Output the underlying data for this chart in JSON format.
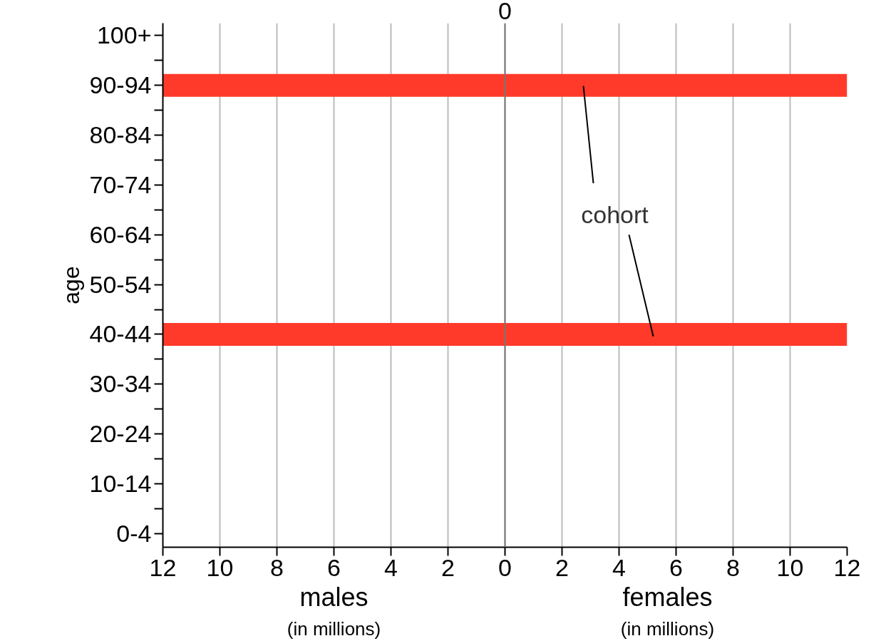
{
  "chart_data": {
    "type": "bar",
    "orientation": "horizontal",
    "ylabel": "age",
    "categories": [
      "100+",
      null,
      "90-94",
      null,
      "80-84",
      null,
      "70-74",
      null,
      "60-64",
      null,
      "50-54",
      null,
      "40-44",
      null,
      "30-34",
      null,
      "20-24",
      null,
      "10-14",
      null,
      "0-4"
    ],
    "series": [
      {
        "color": "#ff3a2a",
        "values": [
          null,
          null,
          -12,
          null,
          null,
          null,
          null,
          null,
          null,
          null,
          null,
          null,
          -12,
          null,
          null,
          null,
          null,
          null,
          null,
          null,
          null
        ]
      },
      {
        "color": "#ff3a2a",
        "values": [
          null,
          null,
          12,
          null,
          null,
          null,
          null,
          null,
          null,
          null,
          null,
          null,
          12,
          null,
          null,
          null,
          null,
          null,
          null,
          null,
          null
        ]
      }
    ],
    "xlim": [
      -12,
      12
    ],
    "xticks": [
      {
        "value": -12,
        "label": "12"
      },
      {
        "value": -10,
        "label": "10"
      },
      {
        "value": -8,
        "label": "8"
      },
      {
        "value": -6,
        "label": "6"
      },
      {
        "value": -4,
        "label": "4"
      },
      {
        "value": -2,
        "label": "2"
      },
      0,
      2,
      4,
      6,
      8,
      10,
      12
    ],
    "grid": "x",
    "ref_lines": [
      {
        "axis": "x",
        "value": 0,
        "label": "0",
        "color": "#777777"
      }
    ],
    "annotations": [
      "males",
      "(in millions)",
      "females",
      "(in millions)",
      "cohort"
    ]
  }
}
